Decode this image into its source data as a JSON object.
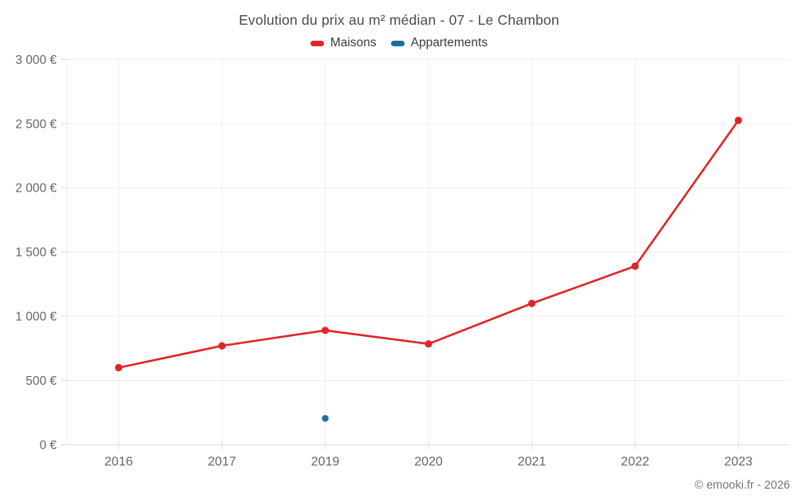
{
  "chart_data": {
    "type": "line",
    "title": "Evolution du prix au m² médian - 07 - Le Chambon",
    "footer": "© emooki.fr - 2026",
    "categories": [
      "2016",
      "2017",
      "2019",
      "2020",
      "2021",
      "2022",
      "2023"
    ],
    "series": [
      {
        "name": "Maisons",
        "color": "#e02427",
        "values": [
          600,
          770,
          890,
          785,
          1100,
          1390,
          2525
        ]
      },
      {
        "name": "Appartements",
        "color": "#186fa5",
        "values": [
          null,
          null,
          205,
          null,
          null,
          null,
          null
        ]
      }
    ],
    "ylim": [
      0,
      3000
    ],
    "y_ticks": [
      {
        "value": 0,
        "label": "0 €"
      },
      {
        "value": 500,
        "label": "500 €"
      },
      {
        "value": 1000,
        "label": "1 000 €"
      },
      {
        "value": 1500,
        "label": "1 500 €"
      },
      {
        "value": 2000,
        "label": "2 000 €"
      },
      {
        "value": 2500,
        "label": "2 500 €"
      },
      {
        "value": 3000,
        "label": "3 000 €"
      }
    ],
    "grid": true,
    "legend_position": "top",
    "colors": {
      "grid": "#ededed",
      "axis": "#d9d9d9",
      "tick_label": "#666666",
      "title_text": "#4d4d4d",
      "legend_text": "#3d3d3d",
      "footer_text": "#757575"
    }
  }
}
